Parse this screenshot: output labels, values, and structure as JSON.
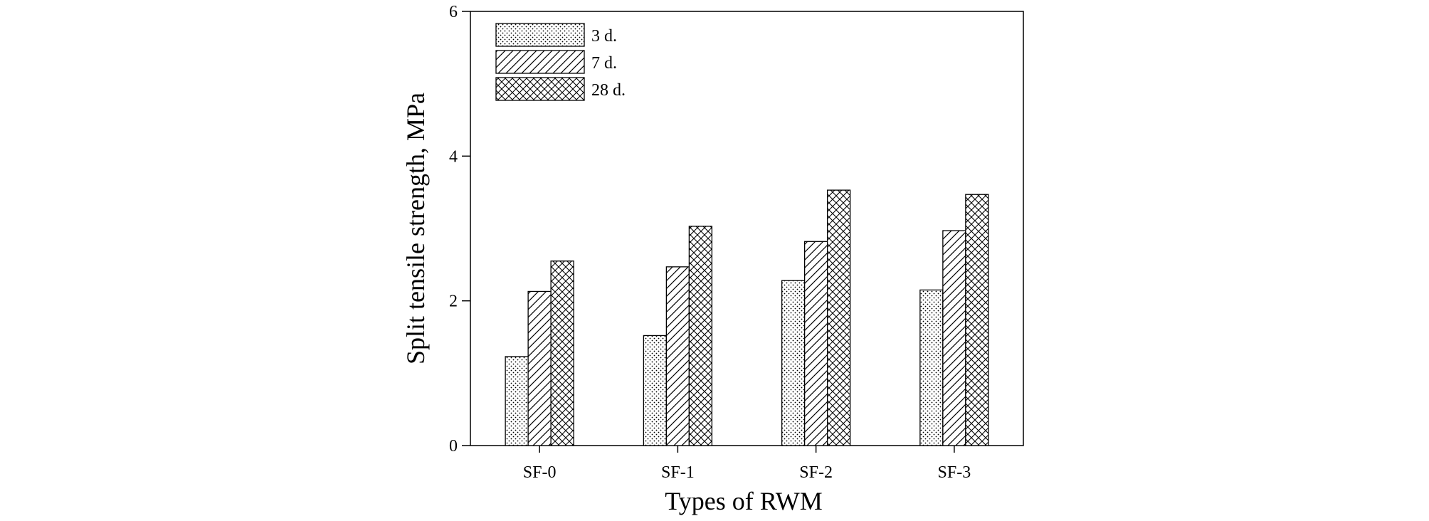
{
  "chart_data": {
    "type": "bar",
    "xlabel": "Types of RWM",
    "ylabel": "Split tensile strength, MPa",
    "categories": [
      "SF-0",
      "SF-1",
      "SF-2",
      "SF-3"
    ],
    "ylim": [
      0,
      6
    ],
    "yticks": [
      0,
      2,
      4,
      6
    ],
    "grid": false,
    "legend_position": "top-left",
    "series": [
      {
        "name": "3 d.",
        "pattern": "dots",
        "values": [
          1.23,
          1.52,
          2.28,
          2.15
        ]
      },
      {
        "name": "7 d.",
        "pattern": "diagonal",
        "values": [
          2.13,
          2.47,
          2.82,
          2.97
        ]
      },
      {
        "name": "28 d.",
        "pattern": "crosshatch",
        "values": [
          2.55,
          3.03,
          3.53,
          3.47
        ]
      }
    ],
    "colors": {
      "bar_stroke": "#000000",
      "background": "#ffffff"
    }
  }
}
